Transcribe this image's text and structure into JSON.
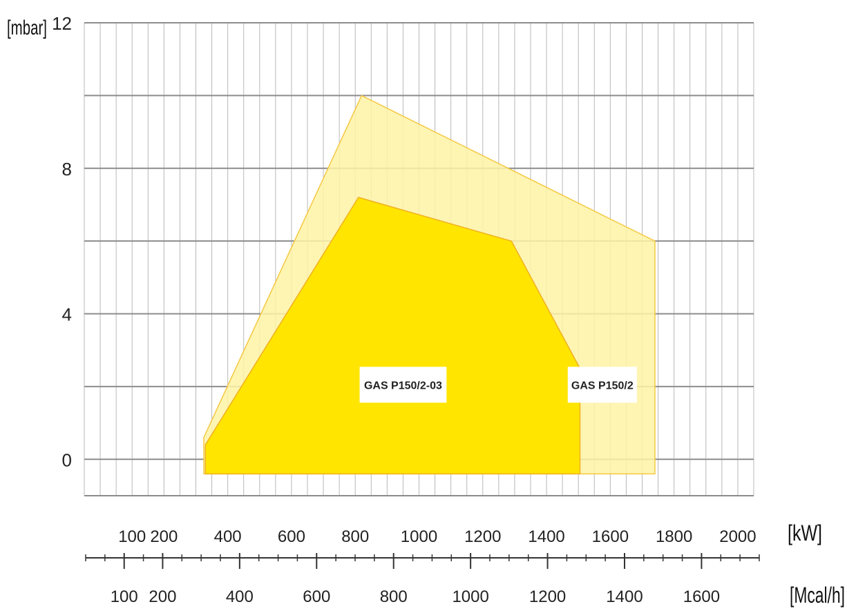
{
  "chart_data": {
    "type": "area",
    "title": "",
    "ylabel": "[mbar]",
    "xlabel": "[kW]",
    "secondary_xlabel": "[Mcal/h]",
    "ylim": [
      -1,
      12
    ],
    "xlim": [
      -50,
      2050
    ],
    "yticks": [
      {
        "value": 0,
        "label": "0"
      },
      {
        "value": 4,
        "label": "4"
      },
      {
        "value": 8,
        "label": "8"
      },
      {
        "value": 12,
        "label": "12"
      }
    ],
    "ygrid": [
      0,
      2,
      4,
      6,
      8,
      10,
      12
    ],
    "xgrid_step": 50,
    "xticks": [
      {
        "value": 100,
        "label": "100"
      },
      {
        "value": 200,
        "label": "200"
      },
      {
        "value": 400,
        "label": "400"
      },
      {
        "value": 600,
        "label": "600"
      },
      {
        "value": 800,
        "label": "800"
      },
      {
        "value": 1000,
        "label": "1000"
      },
      {
        "value": 1200,
        "label": "1200"
      },
      {
        "value": 1400,
        "label": "1400"
      },
      {
        "value": 1600,
        "label": "1600"
      },
      {
        "value": 1800,
        "label": "1800"
      },
      {
        "value": 2000,
        "label": "2000"
      }
    ],
    "secondary_xaxis": {
      "ticks": [
        {
          "value": 100,
          "label": "100"
        },
        {
          "value": 200,
          "label": "200"
        },
        {
          "value": 400,
          "label": "400"
        },
        {
          "value": 600,
          "label": "600"
        },
        {
          "value": 800,
          "label": "800"
        },
        {
          "value": 1000,
          "label": "1000"
        },
        {
          "value": 1200,
          "label": "1200"
        },
        {
          "value": 1400,
          "label": "1400"
        },
        {
          "value": 1600,
          "label": "1600"
        }
      ],
      "minor_step": 50,
      "range": [
        0,
        1750
      ]
    },
    "regions": [
      {
        "name": "GAS P150/2",
        "color": "#fff3a6",
        "stroke": "#f5c842",
        "points": [
          [
            325,
            -0.4
          ],
          [
            325,
            0.6
          ],
          [
            820,
            10
          ],
          [
            1280,
            8
          ],
          [
            1740,
            6
          ],
          [
            1740,
            -0.4
          ]
        ],
        "label_at": [
          1575,
          2.05
        ]
      },
      {
        "name": "GAS P150/2-03",
        "color": "#ffe500",
        "stroke": "#f0b020",
        "points": [
          [
            330,
            -0.4
          ],
          [
            330,
            0.4
          ],
          [
            810,
            7.2
          ],
          [
            1290,
            6
          ],
          [
            1505,
            2.5
          ],
          [
            1505,
            -0.4
          ]
        ],
        "label_at": [
          950,
          2.05
        ]
      }
    ]
  }
}
